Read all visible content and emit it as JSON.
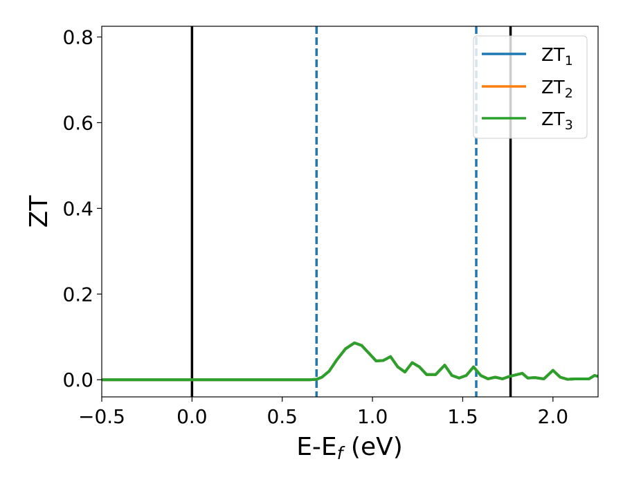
{
  "chart_data": {
    "type": "line",
    "title": "",
    "xlabel": "E-E",
    "xlabel_sub": "f",
    "xlabel_unit": " (eV)",
    "ylabel": "ZT",
    "xlim": [
      -0.5,
      2.25
    ],
    "ylim": [
      -0.04,
      0.825
    ],
    "xticks": [
      -0.5,
      0.0,
      0.5,
      1.0,
      1.5,
      2.0
    ],
    "xtick_labels": [
      "−0.5",
      "0.0",
      "0.5",
      "1.0",
      "1.5",
      "2.0"
    ],
    "yticks": [
      0.0,
      0.2,
      0.4,
      0.6,
      0.8
    ],
    "ytick_labels": [
      "0.0",
      "0.2",
      "0.4",
      "0.6",
      "0.8"
    ],
    "grid": false,
    "legend_position": "top-right",
    "vlines": [
      {
        "x": 0.0,
        "style": "solid",
        "color": "#000000"
      },
      {
        "x": 0.69,
        "style": "dashed",
        "color": "#1f77b4"
      },
      {
        "x": 1.575,
        "style": "dashed",
        "color": "#1f77b4"
      },
      {
        "x": 1.765,
        "style": "solid",
        "color": "#000000"
      }
    ],
    "series": [
      {
        "name": "ZT",
        "sub": "1",
        "color": "#1f77b4",
        "x": [
          -0.5,
          0.0,
          0.5,
          0.65,
          0.69,
          0.72,
          0.76,
          0.8,
          0.85,
          0.9,
          0.94,
          0.98,
          1.02,
          1.06,
          1.1,
          1.14,
          1.18,
          1.22,
          1.26,
          1.3,
          1.35,
          1.4,
          1.44,
          1.48,
          1.52,
          1.56,
          1.6,
          1.64,
          1.68,
          1.72,
          1.76,
          1.8,
          1.83,
          1.86,
          1.9,
          1.95,
          2.0,
          2.04,
          2.08,
          2.12,
          2.16,
          2.2,
          2.23,
          2.25
        ],
        "y": [
          0.0,
          0.0,
          0.0,
          0.0,
          0.001,
          0.006,
          0.02,
          0.045,
          0.072,
          0.086,
          0.08,
          0.062,
          0.044,
          0.045,
          0.054,
          0.03,
          0.018,
          0.04,
          0.03,
          0.012,
          0.012,
          0.034,
          0.01,
          0.004,
          0.01,
          0.03,
          0.01,
          0.002,
          0.006,
          0.002,
          0.008,
          0.012,
          0.015,
          0.004,
          0.005,
          0.002,
          0.022,
          0.006,
          0.001,
          0.002,
          0.002,
          0.002,
          0.01,
          0.008
        ]
      },
      {
        "name": "ZT",
        "sub": "2",
        "color": "#ff7f0e",
        "x": [
          -0.5,
          0.0,
          0.5,
          0.65,
          0.69,
          0.72,
          0.76,
          0.8,
          0.85,
          0.9,
          0.94,
          0.98,
          1.02,
          1.06,
          1.1,
          1.14,
          1.18,
          1.22,
          1.26,
          1.3,
          1.35,
          1.4,
          1.44,
          1.48,
          1.52,
          1.56,
          1.6,
          1.64,
          1.68,
          1.72,
          1.76,
          1.8,
          1.83,
          1.86,
          1.9,
          1.95,
          2.0,
          2.04,
          2.08,
          2.12,
          2.16,
          2.2,
          2.23,
          2.25
        ],
        "y": [
          0.0,
          0.0,
          0.0,
          0.0,
          0.001,
          0.006,
          0.02,
          0.045,
          0.072,
          0.086,
          0.08,
          0.062,
          0.044,
          0.045,
          0.054,
          0.03,
          0.018,
          0.04,
          0.03,
          0.012,
          0.012,
          0.034,
          0.01,
          0.004,
          0.01,
          0.03,
          0.01,
          0.002,
          0.006,
          0.002,
          0.008,
          0.012,
          0.015,
          0.004,
          0.005,
          0.002,
          0.022,
          0.006,
          0.001,
          0.002,
          0.002,
          0.002,
          0.01,
          0.008
        ]
      },
      {
        "name": "ZT",
        "sub": "3",
        "color": "#2ca02c",
        "x": [
          -0.5,
          0.0,
          0.5,
          0.65,
          0.69,
          0.72,
          0.76,
          0.8,
          0.85,
          0.9,
          0.94,
          0.98,
          1.02,
          1.06,
          1.1,
          1.14,
          1.18,
          1.22,
          1.26,
          1.3,
          1.35,
          1.4,
          1.44,
          1.48,
          1.52,
          1.56,
          1.6,
          1.64,
          1.68,
          1.72,
          1.76,
          1.8,
          1.83,
          1.86,
          1.9,
          1.95,
          2.0,
          2.04,
          2.08,
          2.12,
          2.16,
          2.2,
          2.23,
          2.25
        ],
        "y": [
          0.0,
          0.0,
          0.0,
          0.0,
          0.001,
          0.006,
          0.02,
          0.045,
          0.072,
          0.086,
          0.08,
          0.062,
          0.044,
          0.045,
          0.054,
          0.03,
          0.018,
          0.04,
          0.03,
          0.012,
          0.012,
          0.034,
          0.01,
          0.004,
          0.01,
          0.03,
          0.01,
          0.002,
          0.006,
          0.002,
          0.008,
          0.012,
          0.015,
          0.004,
          0.005,
          0.002,
          0.022,
          0.006,
          0.001,
          0.002,
          0.002,
          0.002,
          0.01,
          0.008
        ]
      }
    ]
  }
}
